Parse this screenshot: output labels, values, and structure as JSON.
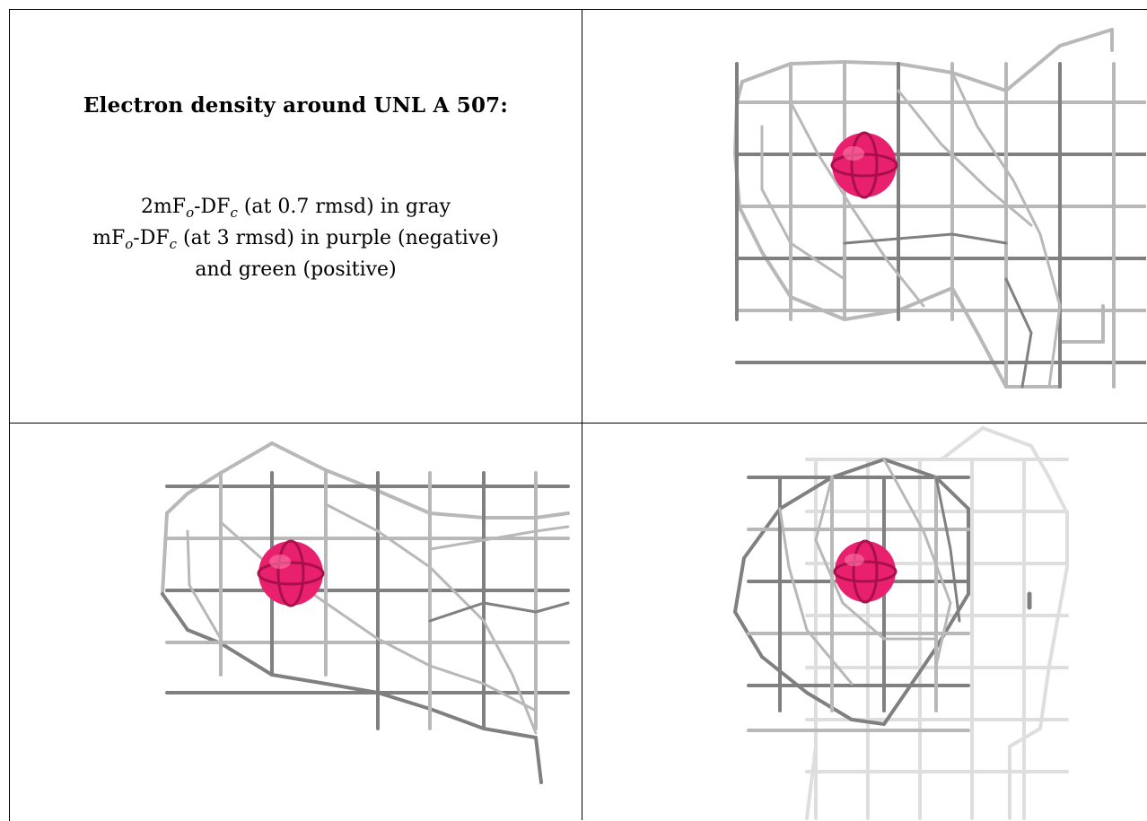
{
  "caption": {
    "title": "Electron density around UNL A 507:",
    "line1": {
      "pre": "2mF",
      "sub1": "o",
      "mid": "-DF",
      "sub2": "c",
      "post": " (at 0.7 rmsd) in gray"
    },
    "line2": {
      "pre": "mF",
      "sub1": "o",
      "mid": "-DF",
      "sub2": "c",
      "post": " (at 3 rmsd) in purple (negative)"
    },
    "line3": "and green (positive)"
  },
  "colors": {
    "mesh": "#b8b8b8",
    "mesh_dark": "#808080",
    "mesh_faint": "#dedede",
    "atom": "#e8206e",
    "border": "#000000"
  },
  "panels": [
    "view-top-right",
    "view-bottom-left",
    "view-bottom-right"
  ]
}
